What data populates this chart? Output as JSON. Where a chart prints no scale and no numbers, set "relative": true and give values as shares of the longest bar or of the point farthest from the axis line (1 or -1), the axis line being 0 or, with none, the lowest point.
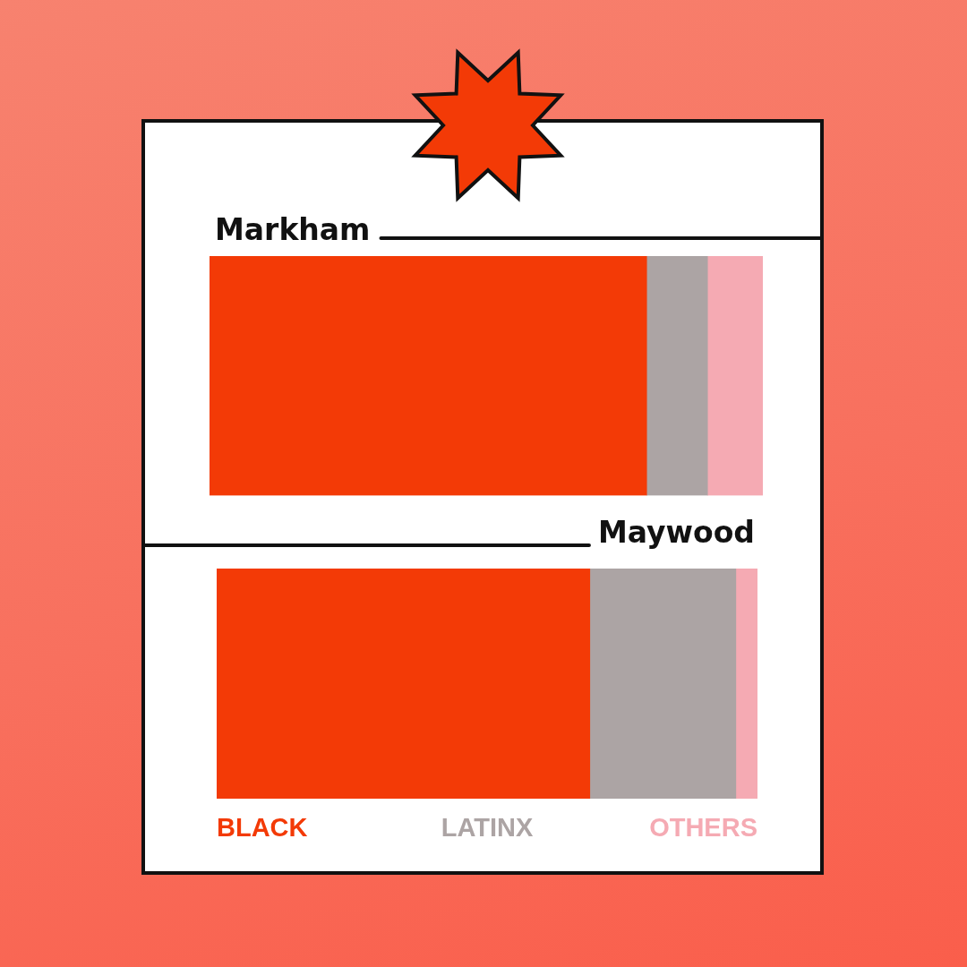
{
  "chart_data": [
    {
      "type": "bar",
      "orientation": "horizontal",
      "stacked": true,
      "relative": true,
      "title": "Markham",
      "categories": [
        null
      ],
      "series": [
        {
          "color": "#f33a06",
          "values": [
            0.79
          ]
        },
        {
          "color": "#aca4a4",
          "values": [
            0.11
          ]
        },
        {
          "color": "#f5aab3",
          "values": [
            0.1
          ]
        }
      ]
    },
    {
      "type": "bar",
      "orientation": "horizontal",
      "stacked": true,
      "relative": true,
      "title": "Maywood",
      "categories": [
        null
      ],
      "series": [
        {
          "name": "BLACK",
          "color": "#f33a06",
          "values": [
            0.69
          ]
        },
        {
          "name": "LATINX",
          "color": "#aca4a4",
          "values": [
            0.27
          ]
        },
        {
          "name": "OTHERS",
          "color": "#f5aab3",
          "values": [
            0.04
          ]
        }
      ]
    }
  ]
}
